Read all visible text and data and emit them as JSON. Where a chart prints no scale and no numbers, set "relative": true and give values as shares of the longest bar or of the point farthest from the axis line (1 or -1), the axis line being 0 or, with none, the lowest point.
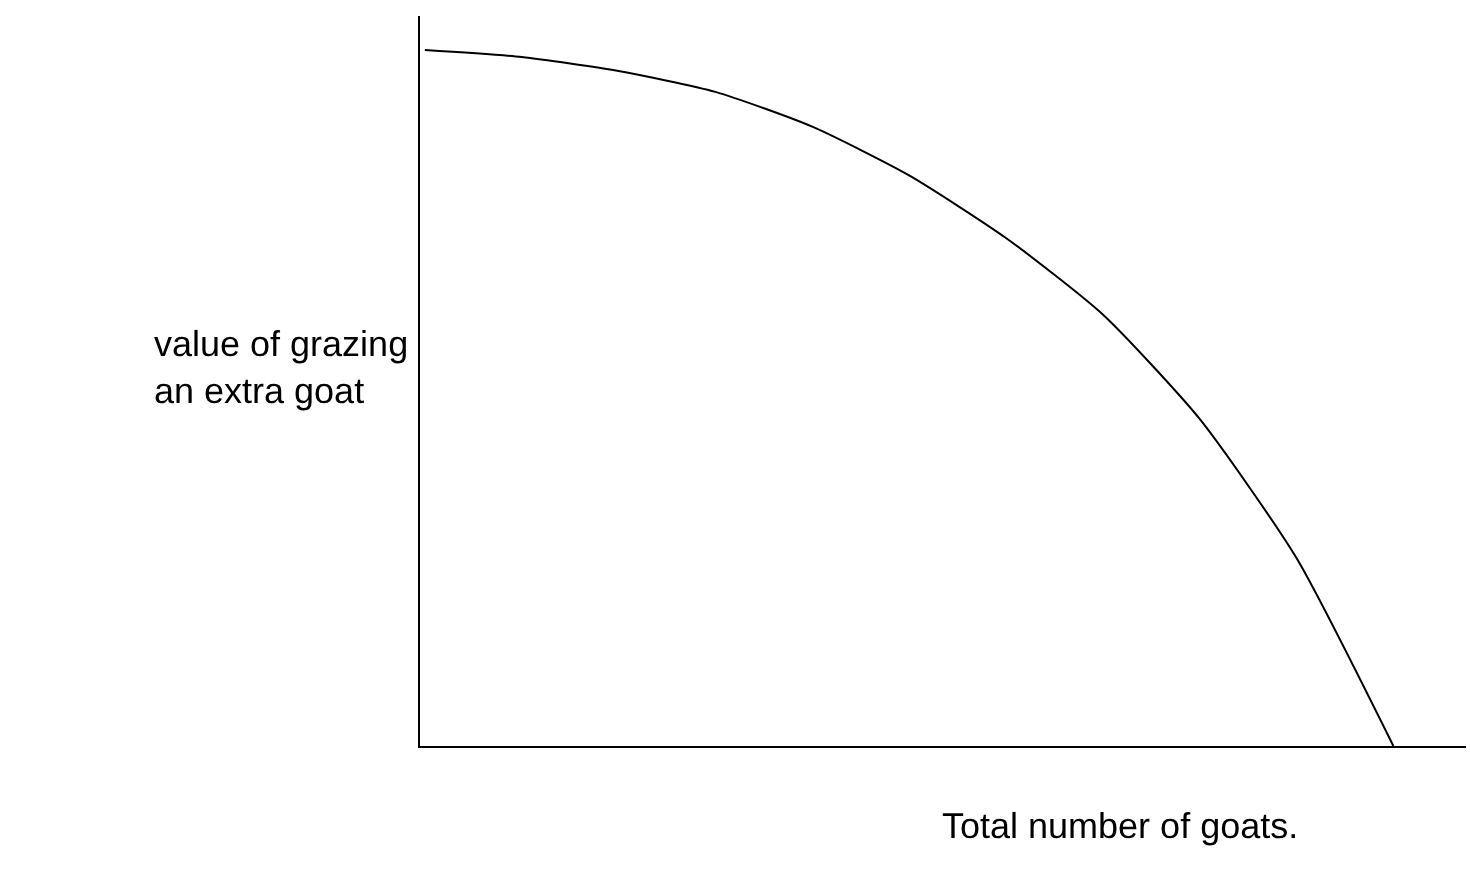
{
  "chart_data": {
    "type": "line",
    "relative": true,
    "xlabel": "Total number of goats.",
    "ylabel": "value of grazing an extra goat",
    "categories": [
      null,
      null,
      null,
      null,
      null,
      null,
      null,
      null,
      null,
      null,
      null
    ],
    "series": [
      {
        "color": "#000000",
        "values": [
          1,
          0.99,
          0.97,
          0.94,
          0.89,
          0.82,
          0.73,
          0.62,
          0.47,
          0.27,
          0
        ]
      }
    ],
    "legend": false,
    "marker": "none",
    "line_style": "solid"
  }
}
